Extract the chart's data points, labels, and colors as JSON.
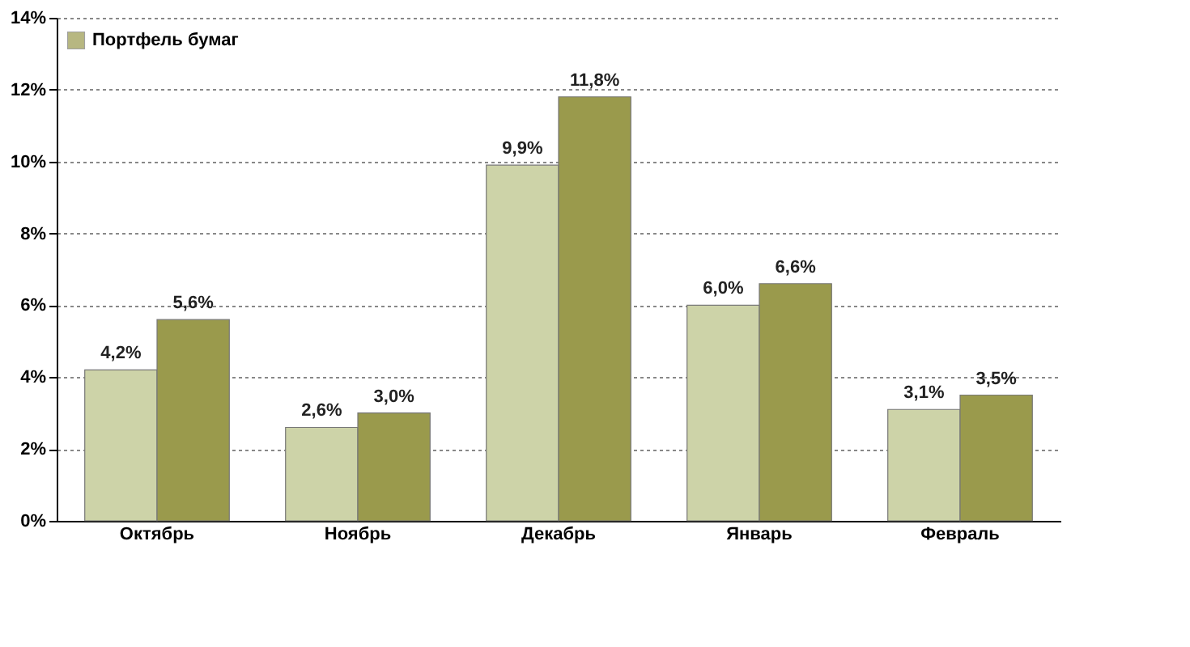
{
  "chart_data": {
    "type": "bar",
    "categories": [
      "Октябрь",
      "Ноябрь",
      "Декабрь",
      "Январь",
      "Февраль"
    ],
    "series": [
      {
        "color": "#cdd3a8",
        "values": [
          4.2,
          2.6,
          9.9,
          6.0,
          3.1
        ],
        "value_labels": [
          "4,2%",
          "2,6%",
          "9,9%",
          "6,0%",
          "3,1%"
        ]
      },
      {
        "name": "Портфель бумаг",
        "color": "#9a9a4c",
        "values": [
          5.6,
          3.0,
          11.8,
          6.6,
          3.5
        ],
        "value_labels": [
          "5,6%",
          "3,0%",
          "11,8%",
          "6,6%",
          "3,5%"
        ]
      }
    ],
    "ylim": [
      0,
      14
    ],
    "yticks": [
      {
        "value": 0,
        "label": "0%"
      },
      {
        "value": 2,
        "label": "2%"
      },
      {
        "value": 4,
        "label": "4%"
      },
      {
        "value": 6,
        "label": "6%"
      },
      {
        "value": 8,
        "label": "8%"
      },
      {
        "value": 10,
        "label": "10%"
      },
      {
        "value": 12,
        "label": "12%"
      },
      {
        "value": 14,
        "label": "14%"
      }
    ],
    "grid": "y",
    "legend": "top left"
  }
}
